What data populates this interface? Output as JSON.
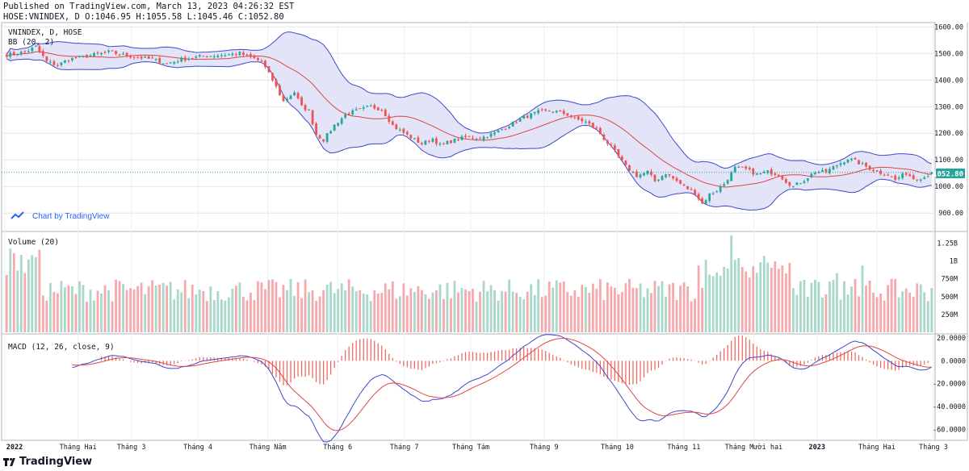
{
  "header": {
    "published": "Published on TradingView.com, March 13, 2023 04:26:32 EST",
    "symbol_line": "HOSE:VNINDEX, D O:1046.95 H:1055.58 L:1045.46 C:1052.80"
  },
  "watermark": "Chart by TradingView",
  "footer_brand": "TradingView",
  "colors": {
    "up": "#26a69a",
    "up_fill": "#a8d8c9",
    "down": "#ef5350",
    "down_fill": "#f5a9ad",
    "bb_band": "#3f48cc",
    "bb_fill": "#e3e4f7",
    "bb_basis": "#e04646",
    "macd_line": "#3f48cc",
    "signal_line": "#e04646",
    "hist": "#f0675f",
    "last_price_bg": "#26a69a",
    "grid": "#e5e5e5",
    "axis_text": "#131722"
  },
  "chart_data": [
    {
      "type": "candlestick",
      "title": "VNINDEX, D, HOSE",
      "indicator": "BB (20, 2)",
      "y_ticks": [
        "1600.00",
        "1500.00",
        "1400.00",
        "1300.00",
        "1200.00",
        "1100.00",
        "1000.00",
        "900.00"
      ],
      "ylim": [
        840,
        1610
      ],
      "last_price": "1052.80",
      "x_labels": [
        "2022",
        "Tháng Hai",
        "Tháng 3",
        "Tháng 4",
        "Tháng Năm",
        "Tháng 6",
        "Tháng 7",
        "Tháng Tám",
        "Tháng 9",
        "Tháng 10",
        "Tháng 11",
        "Tháng Mười hai",
        "2023",
        "Tháng Hai",
        "Tháng 3"
      ],
      "close_anchors": [
        [
          0,
          1495
        ],
        [
          5,
          1505
        ],
        [
          8,
          1525
        ],
        [
          11,
          1470
        ],
        [
          14,
          1455
        ],
        [
          17,
          1478
        ],
        [
          22,
          1490
        ],
        [
          28,
          1505
        ],
        [
          34,
          1490
        ],
        [
          40,
          1478
        ],
        [
          44,
          1462
        ],
        [
          48,
          1478
        ],
        [
          54,
          1490
        ],
        [
          60,
          1495
        ],
        [
          64,
          1500
        ],
        [
          66,
          1490
        ],
        [
          70,
          1470
        ],
        [
          73,
          1400
        ],
        [
          76,
          1320
        ],
        [
          79,
          1355
        ],
        [
          81,
          1300
        ],
        [
          83,
          1285
        ],
        [
          85,
          1195
        ],
        [
          87,
          1175
        ],
        [
          90,
          1230
        ],
        [
          93,
          1270
        ],
        [
          96,
          1285
        ],
        [
          100,
          1300
        ],
        [
          103,
          1290
        ],
        [
          106,
          1230
        ],
        [
          108,
          1210
        ],
        [
          111,
          1185
        ],
        [
          114,
          1160
        ],
        [
          117,
          1180
        ],
        [
          119,
          1155
        ],
        [
          122,
          1170
        ],
        [
          126,
          1185
        ],
        [
          130,
          1182
        ],
        [
          134,
          1200
        ],
        [
          138,
          1230
        ],
        [
          142,
          1260
        ],
        [
          146,
          1280
        ],
        [
          150,
          1285
        ],
        [
          154,
          1270
        ],
        [
          156,
          1255
        ],
        [
          159,
          1242
        ],
        [
          162,
          1215
        ],
        [
          164,
          1180
        ],
        [
          167,
          1130
        ],
        [
          170,
          1075
        ],
        [
          173,
          1040
        ],
        [
          176,
          1055
        ],
        [
          178,
          1020
        ],
        [
          181,
          1050
        ],
        [
          183,
          1030
        ],
        [
          186,
          1000
        ],
        [
          189,
          975
        ],
        [
          191,
          935
        ],
        [
          193,
          970
        ],
        [
          195,
          985
        ],
        [
          197,
          1010
        ],
        [
          200,
          1070
        ],
        [
          203,
          1065
        ],
        [
          206,
          1045
        ],
        [
          209,
          1055
        ],
        [
          212,
          1045
        ],
        [
          214,
          1020
        ],
        [
          216,
          1000
        ],
        [
          219,
          1025
        ],
        [
          222,
          1055
        ],
        [
          225,
          1055
        ],
        [
          228,
          1080
        ],
        [
          231,
          1105
        ],
        [
          233,
          1095
        ],
        [
          236,
          1075
        ],
        [
          239,
          1055
        ],
        [
          242,
          1045
        ],
        [
          244,
          1025
        ],
        [
          247,
          1050
        ],
        [
          249,
          1030
        ],
        [
          252,
          1035
        ],
        [
          254,
          1052.8
        ]
      ],
      "volume_ticks": [
        "1.25B",
        "1B",
        "750M",
        "500M",
        "250M"
      ],
      "volume_label": "Volume (20)",
      "volume_max_M": 1380,
      "macd_label": "MACD (12, 26, close, 9)",
      "macd_ticks": [
        "20.0000",
        "0.0000",
        "-20.0000",
        "-40.0000",
        "-60.0000"
      ],
      "macd_ylim": [
        -68,
        22
      ]
    }
  ]
}
